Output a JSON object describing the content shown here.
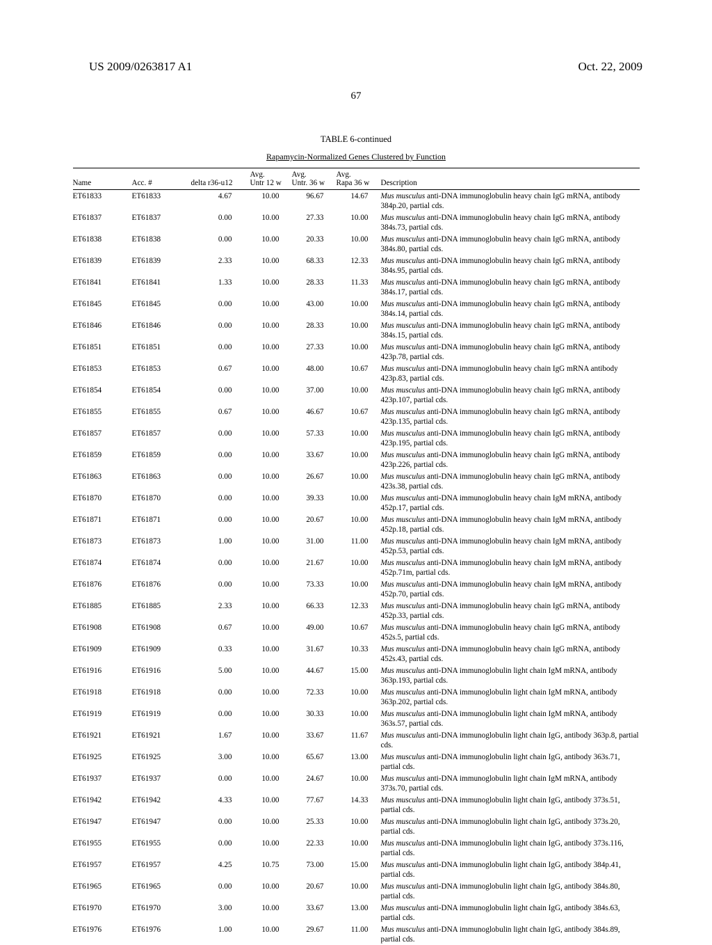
{
  "header": {
    "left": "US 2009/0263817 A1",
    "right": "Oct. 22, 2009"
  },
  "page_number": "67",
  "table": {
    "title": "TABLE 6-continued",
    "subtitle": "Rapamycin-Normalized Genes Clustered by Function",
    "columns": {
      "name": "Name",
      "acc": "Acc. #",
      "delta": "delta r36-u12",
      "avg1_top": "Avg.",
      "avg1_bot": "Untr 12 w",
      "avg2_top": "Avg.",
      "avg2_bot": "Untr. 36 w",
      "avg3_top": "Avg.",
      "avg3_bot": "Rapa 36 w",
      "desc": "Description"
    },
    "rows": [
      {
        "name": "ET61833",
        "acc": "ET61833",
        "delta": "4.67",
        "a1": "10.00",
        "a2": "96.67",
        "a3": "14.67",
        "d1": "Mus musculus",
        "d2": " anti-DNA immunoglobulin heavy chain IgG mRNA, antibody 384p.20, partial cds."
      },
      {
        "name": "ET61837",
        "acc": "ET61837",
        "delta": "0.00",
        "a1": "10.00",
        "a2": "27.33",
        "a3": "10.00",
        "d1": "Mus musculus",
        "d2": " anti-DNA immunoglobulin heavy chain IgG mRNA, antibody 384s.73, partial cds."
      },
      {
        "name": "ET61838",
        "acc": "ET61838",
        "delta": "0.00",
        "a1": "10.00",
        "a2": "20.33",
        "a3": "10.00",
        "d1": "Mus musculus",
        "d2": " anti-DNA immunoglobulin heavy chain IgG mRNA, antibody 384s.80, partial cds."
      },
      {
        "name": "ET61839",
        "acc": "ET61839",
        "delta": "2.33",
        "a1": "10.00",
        "a2": "68.33",
        "a3": "12.33",
        "d1": "Mus musculus",
        "d2": " anti-DNA immunoglobulin heavy chain IgG mRNA, antibody 384s.95, partial cds."
      },
      {
        "name": "ET61841",
        "acc": "ET61841",
        "delta": "1.33",
        "a1": "10.00",
        "a2": "28.33",
        "a3": "11.33",
        "d1": "Mus musculus",
        "d2": " anti-DNA immunoglobulin heavy chain IgG mRNA, antibody 384s.17, partial cds."
      },
      {
        "name": "ET61845",
        "acc": "ET61845",
        "delta": "0.00",
        "a1": "10.00",
        "a2": "43.00",
        "a3": "10.00",
        "d1": "Mus musculus",
        "d2": " anti-DNA immunoglobulin heavy chain IgG mRNA, antibody 384s.14, partial cds."
      },
      {
        "name": "ET61846",
        "acc": "ET61846",
        "delta": "0.00",
        "a1": "10.00",
        "a2": "28.33",
        "a3": "10.00",
        "d1": "Mus musculus",
        "d2": " anti-DNA immunoglobulin heavy chain IgG mRNA, antibody 384s.15, partial cds."
      },
      {
        "name": "ET61851",
        "acc": "ET61851",
        "delta": "0.00",
        "a1": "10.00",
        "a2": "27.33",
        "a3": "10.00",
        "d1": "Mus musculus",
        "d2": " anti-DNA immunoglobulin heavy chain IgG mRNA, antibody 423p.78, partial cds."
      },
      {
        "name": "ET61853",
        "acc": "ET61853",
        "delta": "0.67",
        "a1": "10.00",
        "a2": "48.00",
        "a3": "10.67",
        "d1": "Mus musculus",
        "d2": " anti-DNA immunoglobulin heavy chain IgG mRNA antibody 423p.83, partial cds."
      },
      {
        "name": "ET61854",
        "acc": "ET61854",
        "delta": "0.00",
        "a1": "10.00",
        "a2": "37.00",
        "a3": "10.00",
        "d1": "Mus musculus",
        "d2": " anti-DNA immunoglobulin heavy chain IgG mRNA, antibody 423p.107, partial cds."
      },
      {
        "name": "ET61855",
        "acc": "ET61855",
        "delta": "0.67",
        "a1": "10.00",
        "a2": "46.67",
        "a3": "10.67",
        "d1": "Mus musculus",
        "d2": " anti-DNA immunoglobulin heavy chain IgG mRNA, antibody 423p.135, partial cds."
      },
      {
        "name": "ET61857",
        "acc": "ET61857",
        "delta": "0.00",
        "a1": "10.00",
        "a2": "57.33",
        "a3": "10.00",
        "d1": "Mus musculus",
        "d2": " anti-DNA immunoglobulin heavy chain IgG mRNA, antibody 423p.195, partial cds."
      },
      {
        "name": "ET61859",
        "acc": "ET61859",
        "delta": "0.00",
        "a1": "10.00",
        "a2": "33.67",
        "a3": "10.00",
        "d1": "Mus musculus",
        "d2": " anti-DNA immunoglobulin heavy chain IgG mRNA, antibody 423p.226, partial cds."
      },
      {
        "name": "ET61863",
        "acc": "ET61863",
        "delta": "0.00",
        "a1": "10.00",
        "a2": "26.67",
        "a3": "10.00",
        "d1": "Mus musculus",
        "d2": " anti-DNA immunoglobulin heavy chain IgG mRNA, antibody 423s.38, partial cds."
      },
      {
        "name": "ET61870",
        "acc": "ET61870",
        "delta": "0.00",
        "a1": "10.00",
        "a2": "39.33",
        "a3": "10.00",
        "d1": "Mus musculus",
        "d2": " anti-DNA immunoglobulin heavy chain IgM mRNA, antibody 452p.17, partial cds."
      },
      {
        "name": "ET61871",
        "acc": "ET61871",
        "delta": "0.00",
        "a1": "10.00",
        "a2": "20.67",
        "a3": "10.00",
        "d1": "Mus musculus",
        "d2": " anti-DNA immunoglobulin heavy chain IgM mRNA, antibody 452p.18, partial cds."
      },
      {
        "name": "ET61873",
        "acc": "ET61873",
        "delta": "1.00",
        "a1": "10.00",
        "a2": "31.00",
        "a3": "11.00",
        "d1": "Mus musculus",
        "d2": " anti-DNA immunoglobulin heavy chain IgM mRNA, antibody 452p.53, partial cds."
      },
      {
        "name": "ET61874",
        "acc": "ET61874",
        "delta": "0.00",
        "a1": "10.00",
        "a2": "21.67",
        "a3": "10.00",
        "d1": "Mus musculus",
        "d2": " anti-DNA immunoglobulin heavy chain IgM mRNA, antibody 452p.71m, partial cds."
      },
      {
        "name": "ET61876",
        "acc": "ET61876",
        "delta": "0.00",
        "a1": "10.00",
        "a2": "73.33",
        "a3": "10.00",
        "d1": "Mus musculus",
        "d2": " anti-DNA immunoglobulin heavy chain IgM mRNA, antibody 452p.70, partial cds."
      },
      {
        "name": "ET61885",
        "acc": "ET61885",
        "delta": "2.33",
        "a1": "10.00",
        "a2": "66.33",
        "a3": "12.33",
        "d1": "Mus musculus",
        "d2": " anti-DNA immunoglobulin heavy chain IgG mRNA, antibody 452p.33, partial cds."
      },
      {
        "name": "ET61908",
        "acc": "ET61908",
        "delta": "0.67",
        "a1": "10.00",
        "a2": "49.00",
        "a3": "10.67",
        "d1": "Mus musculus",
        "d2": " anti-DNA immunoglobulin heavy chain IgG mRNA, antibody 452s.5, partial cds."
      },
      {
        "name": "ET61909",
        "acc": "ET61909",
        "delta": "0.33",
        "a1": "10.00",
        "a2": "31.67",
        "a3": "10.33",
        "d1": "Mus musculus",
        "d2": " anti-DNA immunoglobulin heavy chain IgG mRNA, antibody 452s.43, partial cds."
      },
      {
        "name": "ET61916",
        "acc": "ET61916",
        "delta": "5.00",
        "a1": "10.00",
        "a2": "44.67",
        "a3": "15.00",
        "d1": "Mus musculus",
        "d2": " anti-DNA immunoglobulin light chain IgM mRNA, antibody 363p.193, partial cds."
      },
      {
        "name": "ET61918",
        "acc": "ET61918",
        "delta": "0.00",
        "a1": "10.00",
        "a2": "72.33",
        "a3": "10.00",
        "d1": "Mus musculus",
        "d2": " anti-DNA immunoglobulin light chain IgM mRNA, antibody 363p.202, partial cds."
      },
      {
        "name": "ET61919",
        "acc": "ET61919",
        "delta": "0.00",
        "a1": "10.00",
        "a2": "30.33",
        "a3": "10.00",
        "d1": "Mus musculus",
        "d2": " anti-DNA immunoglobulin light chain IgM mRNA, antibody 363s.57, partial cds."
      },
      {
        "name": "ET61921",
        "acc": "ET61921",
        "delta": "1.67",
        "a1": "10.00",
        "a2": "33.67",
        "a3": "11.67",
        "d1": "Mus musculus",
        "d2": " anti-DNA immunoglobulin light chain IgG, antibody 363p.8, partial cds."
      },
      {
        "name": "ET61925",
        "acc": "ET61925",
        "delta": "3.00",
        "a1": "10.00",
        "a2": "65.67",
        "a3": "13.00",
        "d1": "Mus musculus",
        "d2": " anti-DNA immunoglobulin light chain IgG, antibody 363s.71, partial cds."
      },
      {
        "name": "ET61937",
        "acc": "ET61937",
        "delta": "0.00",
        "a1": "10.00",
        "a2": "24.67",
        "a3": "10.00",
        "d1": "Mus musculus",
        "d2": " anti-DNA immunoglobulin light chain IgM mRNA, antibody 373s.70, partial cds."
      },
      {
        "name": "ET61942",
        "acc": "ET61942",
        "delta": "4.33",
        "a1": "10.00",
        "a2": "77.67",
        "a3": "14.33",
        "d1": "Mus musculus",
        "d2": " anti-DNA immunoglobulin light chain IgG, antibody 373s.51, partial cds."
      },
      {
        "name": "ET61947",
        "acc": "ET61947",
        "delta": "0.00",
        "a1": "10.00",
        "a2": "25.33",
        "a3": "10.00",
        "d1": "Mus musculus",
        "d2": " anti-DNA immunoglobulin light chain IgG, antibody 373s.20, partial cds."
      },
      {
        "name": "ET61955",
        "acc": "ET61955",
        "delta": "0.00",
        "a1": "10.00",
        "a2": "22.33",
        "a3": "10.00",
        "d1": "Mus musculus",
        "d2": " anti-DNA immunoglobulin light chain IgG, antibody 373s.116, partial cds."
      },
      {
        "name": "ET61957",
        "acc": "ET61957",
        "delta": "4.25",
        "a1": "10.75",
        "a2": "73.00",
        "a3": "15.00",
        "d1": "Mus musculus",
        "d2": " anti-DNA immunoglobulin light chain IgG, antibody 384p.41, partial cds."
      },
      {
        "name": "ET61965",
        "acc": "ET61965",
        "delta": "0.00",
        "a1": "10.00",
        "a2": "20.67",
        "a3": "10.00",
        "d1": "Mus musculus",
        "d2": " anti-DNA immunoglobulin light chain IgG, antibody 384s.80, partial cds."
      },
      {
        "name": "ET61970",
        "acc": "ET61970",
        "delta": "3.00",
        "a1": "10.00",
        "a2": "33.67",
        "a3": "13.00",
        "d1": "Mus musculus",
        "d2": " anti-DNA immunoglobulin light chain IgG, antibody 384s.63, partial cds."
      },
      {
        "name": "ET61976",
        "acc": "ET61976",
        "delta": "1.00",
        "a1": "10.00",
        "a2": "29.67",
        "a3": "11.00",
        "d1": "Mus musculus",
        "d2": " anti-DNA immunoglobulin light chain IgG, antibody 384s.89, partial cds."
      }
    ]
  }
}
